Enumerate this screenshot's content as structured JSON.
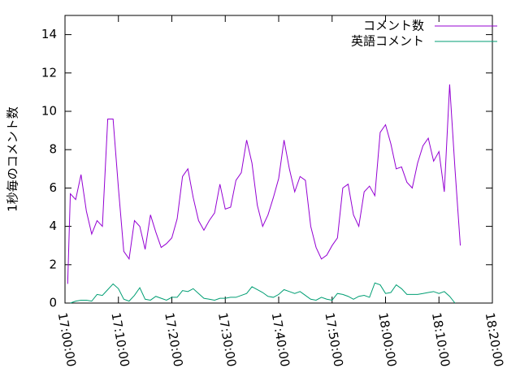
{
  "chart_data": {
    "type": "line",
    "ylabel": "1秒毎のコメント数",
    "x": [
      "17:00:30",
      "17:01:00",
      "17:02:00",
      "17:03:00",
      "17:04:00",
      "17:05:00",
      "17:06:00",
      "17:07:00",
      "17:08:00",
      "17:09:00",
      "17:10:00",
      "17:11:00",
      "17:12:00",
      "17:13:00",
      "17:14:00",
      "17:15:00",
      "17:16:00",
      "17:17:00",
      "17:18:00",
      "17:19:00",
      "17:20:00",
      "17:21:00",
      "17:22:00",
      "17:23:00",
      "17:24:00",
      "17:25:00",
      "17:26:00",
      "17:27:00",
      "17:28:00",
      "17:29:00",
      "17:30:00",
      "17:31:00",
      "17:32:00",
      "17:33:00",
      "17:34:00",
      "17:35:00",
      "17:36:00",
      "17:37:00",
      "17:38:00",
      "17:39:00",
      "17:40:00",
      "17:41:00",
      "17:42:00",
      "17:43:00",
      "17:44:00",
      "17:45:00",
      "17:46:00",
      "17:47:00",
      "17:48:00",
      "17:49:00",
      "17:50:00",
      "17:51:00",
      "17:52:00",
      "17:53:00",
      "17:54:00",
      "17:55:00",
      "17:56:00",
      "17:57:00",
      "17:58:00",
      "17:59:00",
      "18:00:00",
      "18:01:00",
      "18:02:00",
      "18:03:00",
      "18:04:00",
      "18:05:00",
      "18:06:00",
      "18:07:00",
      "18:08:00",
      "18:09:00",
      "18:10:00",
      "18:11:00",
      "18:12:00",
      "18:13:00",
      "18:14:00"
    ],
    "series": [
      {
        "name": "コメント数",
        "color": "#9400d3",
        "values": [
          1.0,
          5.7,
          5.4,
          6.7,
          4.8,
          3.6,
          4.3,
          4.0,
          9.6,
          9.6,
          6.0,
          2.7,
          2.3,
          4.3,
          4.0,
          2.8,
          4.6,
          3.7,
          2.9,
          3.1,
          3.4,
          4.4,
          6.6,
          7.0,
          5.5,
          4.3,
          3.8,
          4.3,
          4.7,
          6.2,
          4.9,
          5.0,
          6.4,
          6.8,
          8.5,
          7.3,
          5.1,
          4.0,
          4.6,
          5.5,
          6.5,
          8.5,
          7.0,
          5.8,
          6.6,
          6.4,
          4.0,
          2.9,
          2.3,
          2.5,
          3.0,
          3.4,
          6.0,
          6.2,
          4.6,
          4.0,
          5.8,
          6.1,
          5.6,
          8.9,
          9.3,
          8.3,
          7.0,
          7.1,
          6.3,
          6.0,
          7.3,
          8.2,
          8.6,
          7.4,
          7.9,
          5.8,
          11.4,
          7.0,
          3.0
        ]
      },
      {
        "name": "英語コメント",
        "color": "#009e73",
        "values": [
          null,
          0.0,
          0.1,
          0.15,
          0.15,
          0.1,
          0.45,
          0.4,
          0.7,
          1.0,
          0.75,
          0.2,
          0.1,
          0.4,
          0.8,
          0.2,
          0.15,
          0.35,
          0.25,
          0.15,
          0.3,
          0.3,
          0.65,
          0.6,
          0.75,
          0.5,
          0.25,
          0.2,
          0.15,
          0.25,
          0.25,
          0.3,
          0.3,
          0.4,
          0.5,
          0.85,
          0.7,
          0.55,
          0.35,
          0.3,
          0.45,
          0.7,
          0.6,
          0.5,
          0.6,
          0.4,
          0.2,
          0.15,
          0.3,
          0.2,
          0.15,
          0.5,
          0.45,
          0.35,
          0.2,
          0.35,
          0.4,
          0.3,
          1.05,
          0.95,
          0.5,
          0.55,
          0.95,
          0.75,
          0.45,
          0.45,
          0.45,
          0.5,
          0.55,
          0.6,
          0.5,
          0.6,
          0.35,
          0.0,
          null
        ]
      }
    ],
    "xlim": [
      "17:00:00",
      "18:20:00"
    ],
    "xticks": [
      "17:00:00",
      "17:10:00",
      "17:20:00",
      "17:30:00",
      "17:40:00",
      "17:50:00",
      "18:00:00",
      "18:10:00",
      "18:20:00"
    ],
    "ylim": [
      0,
      15
    ],
    "yticks": [
      0,
      2,
      4,
      6,
      8,
      10,
      12,
      14
    ],
    "legend": "top-right"
  }
}
